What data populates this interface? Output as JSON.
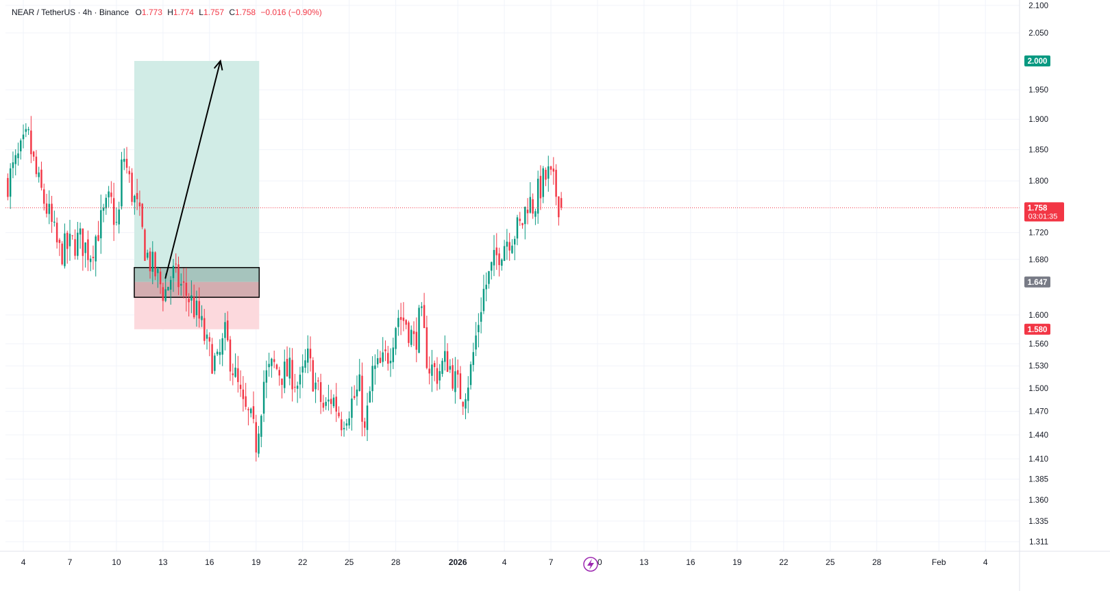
{
  "legend": {
    "symbol": "NEAR / TetherUS · 4h · Binance",
    "o_label": "O",
    "o_value": "1.773",
    "h_label": "H",
    "h_value": "1.774",
    "l_label": "L",
    "l_value": "1.757",
    "c_label": "C",
    "c_value": "1.758",
    "change": "−0.016 (−0.90%)"
  },
  "colors": {
    "up": "#089981",
    "down": "#f23645",
    "grid": "#f0f3fa",
    "profit_zone": "#d1ece6",
    "loss_zone": "#fcd9dd",
    "entry_box": "#000000",
    "target_pill": "#089981",
    "stop_pill": "#f23645",
    "entry_pill": "#787b86",
    "price_line": "#f23645"
  },
  "chart_data": {
    "type": "candlestick",
    "title": "NEAR / TetherUS · 4h · Binance",
    "y_axis": {
      "ticks": [
        "2.100",
        "2.050",
        "2.000",
        "1.950",
        "1.900",
        "1.850",
        "1.800",
        "1.758",
        "1.720",
        "1.680",
        "1.647",
        "1.600",
        "1.560",
        "1.530",
        "1.500",
        "1.470",
        "1.440",
        "1.410",
        "1.385",
        "1.360",
        "1.335",
        "1.311"
      ],
      "tick_values": [
        2.1,
        2.05,
        1.95,
        1.9,
        1.85,
        1.8,
        1.72,
        1.68,
        1.6,
        1.56,
        1.53,
        1.5,
        1.47,
        1.44,
        1.41,
        1.385,
        1.36,
        1.335,
        1.311
      ],
      "tick_labels": [
        "2.100",
        "2.050",
        "1.950",
        "1.900",
        "1.850",
        "1.800",
        "1.720",
        "1.680",
        "1.600",
        "1.560",
        "1.530",
        "1.500",
        "1.470",
        "1.440",
        "1.410",
        "1.385",
        "1.360",
        "1.335",
        "1.311"
      ],
      "log_scale": true,
      "range": [
        1.3,
        2.11
      ]
    },
    "x_axis": {
      "ticks": [
        {
          "label": "4",
          "day": 4
        },
        {
          "label": "7",
          "day": 7
        },
        {
          "label": "10",
          "day": 10
        },
        {
          "label": "13",
          "day": 13
        },
        {
          "label": "16",
          "day": 16
        },
        {
          "label": "19",
          "day": 19
        },
        {
          "label": "22",
          "day": 22
        },
        {
          "label": "25",
          "day": 25
        },
        {
          "label": "28",
          "day": 28
        },
        {
          "label": "2026",
          "day": 32,
          "bold": true
        },
        {
          "label": "4",
          "day": 35
        },
        {
          "label": "7",
          "day": 38
        },
        {
          "label": "10",
          "day": 41
        },
        {
          "label": "13",
          "day": 44
        },
        {
          "label": "16",
          "day": 47
        },
        {
          "label": "19",
          "day": 50
        },
        {
          "label": "22",
          "day": 53
        },
        {
          "label": "25",
          "day": 56
        },
        {
          "label": "28",
          "day": 59
        },
        {
          "label": "Feb",
          "day": 63
        },
        {
          "label": "4",
          "day": 66
        }
      ],
      "range_days": [
        2.85,
        68.2
      ]
    },
    "last_price": {
      "value": 1.758,
      "label": "1.758",
      "countdown": "03:01:35"
    },
    "position": {
      "type": "long",
      "target": 2.0,
      "target_label": "2.000",
      "entry": 1.647,
      "entry_label": "1.647",
      "stop": 1.58,
      "stop_label": "1.580",
      "entry_zone_high": 1.668,
      "entry_zone_low": 1.625,
      "start_day": 11.15,
      "end_day": 19.2,
      "arrow_from": {
        "day": 13.15,
        "price": 1.652
      },
      "arrow_to": {
        "day": 16.7,
        "price": 2.0
      }
    },
    "waypoints": [
      [
        3.0,
        1.8
      ],
      [
        3.6,
        1.83
      ],
      [
        4.3,
        1.87
      ],
      [
        4.9,
        1.8
      ],
      [
        5.6,
        1.75
      ],
      [
        6.3,
        1.69
      ],
      [
        7.0,
        1.7
      ],
      [
        7.6,
        1.71
      ],
      [
        8.3,
        1.69
      ],
      [
        8.9,
        1.73
      ],
      [
        9.6,
        1.77
      ],
      [
        10.1,
        1.72
      ],
      [
        10.4,
        1.85
      ],
      [
        10.9,
        1.79
      ],
      [
        11.4,
        1.75
      ],
      [
        11.9,
        1.69
      ],
      [
        12.5,
        1.66
      ],
      [
        13.1,
        1.63
      ],
      [
        13.6,
        1.66
      ],
      [
        14.2,
        1.64
      ],
      [
        14.8,
        1.62
      ],
      [
        15.4,
        1.59
      ],
      [
        15.9,
        1.55
      ],
      [
        16.5,
        1.53
      ],
      [
        17.0,
        1.57
      ],
      [
        17.6,
        1.52
      ],
      [
        18.2,
        1.47
      ],
      [
        18.6,
        1.46
      ],
      [
        19.0,
        1.43
      ],
      [
        19.5,
        1.51
      ],
      [
        20.1,
        1.53
      ],
      [
        20.7,
        1.52
      ],
      [
        21.3,
        1.52
      ],
      [
        21.8,
        1.5
      ],
      [
        22.3,
        1.54
      ],
      [
        22.9,
        1.5
      ],
      [
        23.4,
        1.47
      ],
      [
        23.9,
        1.49
      ],
      [
        24.5,
        1.46
      ],
      [
        25.1,
        1.48
      ],
      [
        25.7,
        1.5
      ],
      [
        26.0,
        1.44
      ],
      [
        26.5,
        1.52
      ],
      [
        27.1,
        1.53
      ],
      [
        27.6,
        1.55
      ],
      [
        28.1,
        1.6
      ],
      [
        28.7,
        1.59
      ],
      [
        29.2,
        1.56
      ],
      [
        29.6,
        1.6
      ],
      [
        30.1,
        1.53
      ],
      [
        30.7,
        1.52
      ],
      [
        31.3,
        1.54
      ],
      [
        31.8,
        1.51
      ],
      [
        32.3,
        1.49
      ],
      [
        32.8,
        1.52
      ],
      [
        33.1,
        1.56
      ],
      [
        33.6,
        1.63
      ],
      [
        34.1,
        1.66
      ],
      [
        34.6,
        1.69
      ],
      [
        35.1,
        1.71
      ],
      [
        35.6,
        1.72
      ],
      [
        36.1,
        1.73
      ],
      [
        36.5,
        1.77
      ],
      [
        36.9,
        1.76
      ],
      [
        37.3,
        1.79
      ],
      [
        37.8,
        1.81
      ],
      [
        38.2,
        1.79
      ],
      [
        38.6,
        1.76
      ]
    ]
  },
  "footer": {
    "replay_icon_label": "lightning"
  }
}
